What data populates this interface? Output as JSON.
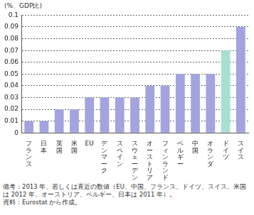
{
  "chart_data": {
    "type": "bar",
    "ylabel": "(%、GDP比)",
    "categories": [
      "フランス",
      "日本",
      "英国",
      "米国",
      "EU",
      "デンマーク",
      "スペイン",
      "スウェーデン",
      "オーストリア",
      "フィンランド",
      "ベルギー",
      "中国",
      "オランダ",
      "ドイツ",
      "スイス"
    ],
    "values": [
      0.01,
      0.01,
      0.02,
      0.02,
      0.03,
      0.03,
      0.03,
      0.03,
      0.04,
      0.04,
      0.05,
      0.05,
      0.05,
      0.07,
      0.09
    ],
    "colors": [
      "#a3a3e0",
      "#a3a3e0",
      "#a3a3e0",
      "#a3a3e0",
      "#a3a3e0",
      "#a3a3e0",
      "#a3a3e0",
      "#a3a3e0",
      "#a3a3e0",
      "#a3a3e0",
      "#a3a3e0",
      "#a3a3e0",
      "#a3a3e0",
      "#a8e0d0",
      "#a3a3e0"
    ],
    "ylim": [
      0,
      0.1
    ],
    "yticks": [
      0,
      0.01,
      0.02,
      0.03,
      0.04,
      0.05,
      0.06,
      0.07,
      0.08,
      0.09,
      0.1
    ],
    "grid": true,
    "annotations": [
      "備考：2013 年、若しくは直近の数値（EU、中国、フランス、ドイツ、スイス、米国は 2012 年、オーストリア、ベルギー、日本は 2011 年）。",
      "資料：Eurostat から作成。"
    ]
  }
}
